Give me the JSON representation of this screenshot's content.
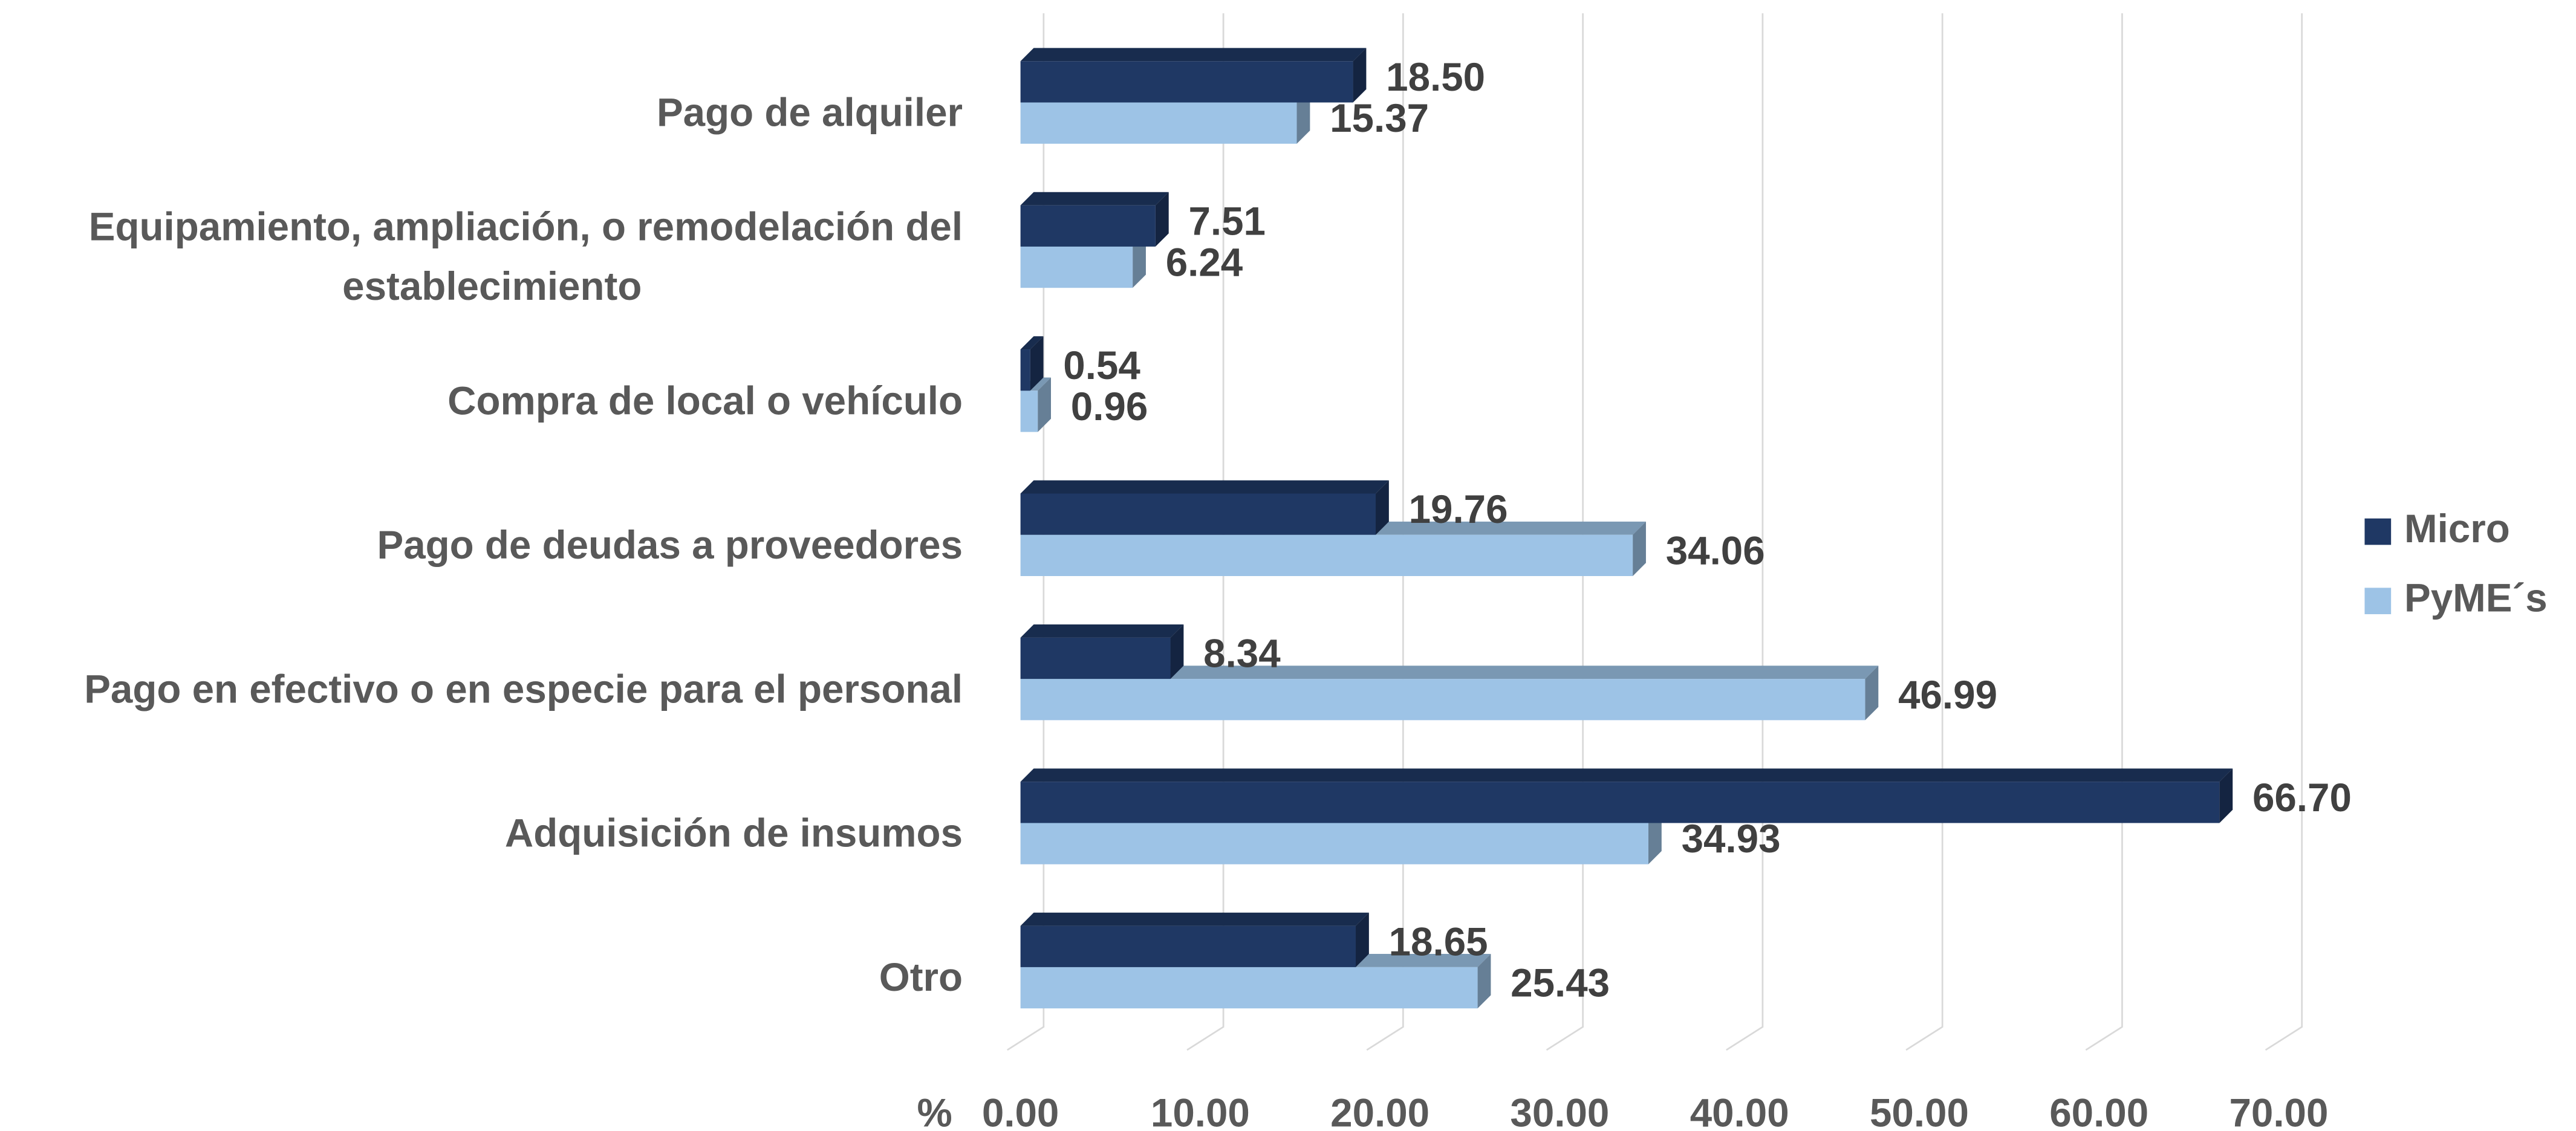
{
  "chart_data": {
    "type": "bar",
    "orientation": "horizontal",
    "three_d": true,
    "categories": [
      "Pago de alquiler",
      "Equipamiento, ampliación, o remodelación del establecimiento",
      "Compra de local o vehículo",
      "Pago de deudas a proveedores",
      "Pago en efectivo o en especie para el personal",
      "Adquisición de insumos",
      "Otro"
    ],
    "series": [
      {
        "name": "Micro",
        "color": "#1f3864",
        "values": [
          18.5,
          7.51,
          0.54,
          19.76,
          8.34,
          66.7,
          18.65
        ],
        "value_labels": [
          "18.50",
          "7.51",
          "0.54",
          "19.76",
          "8.34",
          "66.70",
          "18.65"
        ]
      },
      {
        "name": "PyME´s",
        "color": "#9dc3e6",
        "values": [
          15.37,
          6.24,
          0.96,
          34.06,
          46.99,
          34.93,
          25.43
        ],
        "value_labels": [
          "15.37",
          "6.24",
          "0.96",
          "34.06",
          "46.99",
          "34.93",
          "25.43"
        ]
      }
    ],
    "xlabel": "%",
    "xlim": [
      0,
      70
    ],
    "xticks": [
      {
        "value": 0,
        "label": "0.00"
      },
      {
        "value": 10,
        "label": "10.00"
      },
      {
        "value": 20,
        "label": "20.00"
      },
      {
        "value": 30,
        "label": "30.00"
      },
      {
        "value": 40,
        "label": "40.00"
      },
      {
        "value": 50,
        "label": "50.00"
      },
      {
        "value": 60,
        "label": "60.00"
      },
      {
        "value": 70,
        "label": "70.00"
      }
    ],
    "grid": true,
    "legend": "right"
  }
}
